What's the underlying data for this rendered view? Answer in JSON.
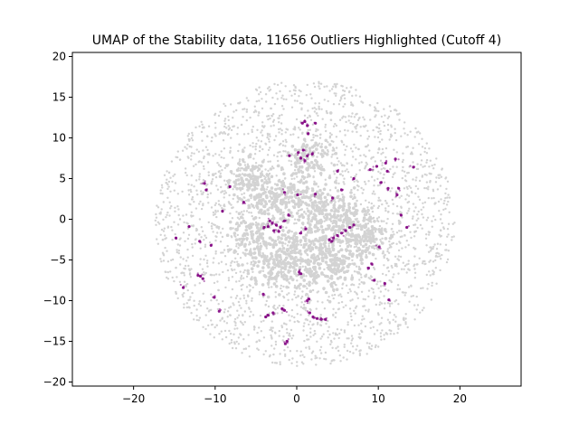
{
  "chart_data": {
    "type": "scatter",
    "title": "UMAP of the Stability data, 11656 Outliers Highlighted (Cutoff 4)",
    "xlabel": "",
    "ylabel": "",
    "xlim": [
      -27.5,
      27.5
    ],
    "ylim": [
      -20.5,
      20.5
    ],
    "x_ticks": [
      -20,
      -10,
      0,
      10,
      20
    ],
    "y_ticks": [
      -20,
      -15,
      -10,
      -5,
      0,
      5,
      10,
      15,
      20
    ],
    "x_tick_labels": [
      "−20",
      "−10",
      "0",
      "10",
      "20"
    ],
    "y_tick_labels": [
      "−20",
      "−15",
      "−10",
      "−5",
      "0",
      "5",
      "10",
      "15",
      "20"
    ],
    "grid": false,
    "legend": "none",
    "colors": {
      "inliers": "#d3d3d3",
      "outliers": "#800080"
    },
    "series": [
      {
        "role": "inliers",
        "color": "#d3d3d3",
        "distribution": "cloud",
        "center": [
          1.0,
          -0.5
        ],
        "radius": 18.0,
        "dense_blobs": [
          [
            -3.5,
            2.0
          ],
          [
            -0.5,
            2.5
          ],
          [
            3.0,
            1.5
          ],
          [
            6.5,
            0.5
          ],
          [
            -5.5,
            -2.5
          ],
          [
            -1.0,
            -3.5
          ],
          [
            3.0,
            -3.0
          ],
          [
            8.0,
            -2.0
          ],
          [
            -3.0,
            -6.0
          ],
          [
            2.0,
            -6.5
          ],
          [
            5.5,
            -5.5
          ],
          [
            -6.0,
            5.0
          ],
          [
            1.5,
            7.5
          ]
        ]
      },
      {
        "role": "outliers",
        "color": "#800080",
        "points": [
          [
            1.0,
            12.0
          ],
          [
            1.3,
            11.5
          ],
          [
            0.7,
            11.8
          ],
          [
            2.3,
            11.8
          ],
          [
            1.4,
            10.5
          ],
          [
            0.2,
            8.2
          ],
          [
            0.5,
            7.5
          ],
          [
            1.0,
            7.2
          ],
          [
            1.3,
            7.8
          ],
          [
            0.8,
            8.5
          ],
          [
            -0.9,
            7.8
          ],
          [
            1.9,
            8.0
          ],
          [
            5.0,
            5.9
          ],
          [
            7.0,
            5.0
          ],
          [
            9.0,
            6.1
          ],
          [
            9.8,
            6.5
          ],
          [
            10.3,
            4.5
          ],
          [
            10.9,
            6.9
          ],
          [
            11.1,
            5.9
          ],
          [
            12.1,
            7.4
          ],
          [
            14.3,
            6.4
          ],
          [
            11.2,
            3.8
          ],
          [
            12.5,
            3.8
          ],
          [
            12.3,
            3.0
          ],
          [
            12.8,
            0.5
          ],
          [
            13.5,
            -1.0
          ],
          [
            -11.3,
            4.4
          ],
          [
            -11.1,
            3.6
          ],
          [
            -8.2,
            4.0
          ],
          [
            -9.1,
            1.0
          ],
          [
            -6.5,
            2.1
          ],
          [
            -1.5,
            3.3
          ],
          [
            0.1,
            3.0
          ],
          [
            2.3,
            3.1
          ],
          [
            4.4,
            2.6
          ],
          [
            5.5,
            3.6
          ],
          [
            -3.0,
            -0.5
          ],
          [
            -2.5,
            -0.7
          ],
          [
            -2.0,
            -1.0
          ],
          [
            -3.5,
            -0.9
          ],
          [
            -2.8,
            -1.4
          ],
          [
            -2.2,
            -1.5
          ],
          [
            -4.0,
            -1.0
          ],
          [
            -3.3,
            -0.2
          ],
          [
            -1.0,
            0.5
          ],
          [
            -1.5,
            -0.2
          ],
          [
            4.0,
            -2.5
          ],
          [
            4.5,
            -2.3
          ],
          [
            5.0,
            -2.0
          ],
          [
            5.5,
            -1.7
          ],
          [
            6.0,
            -1.4
          ],
          [
            6.5,
            -1.0
          ],
          [
            7.0,
            -0.7
          ],
          [
            4.3,
            -2.7
          ],
          [
            -13.2,
            -0.9
          ],
          [
            -14.8,
            -2.3
          ],
          [
            -11.9,
            -2.7
          ],
          [
            -10.5,
            -3.2
          ],
          [
            0.5,
            -1.7
          ],
          [
            1.1,
            -1.2
          ],
          [
            -12.1,
            -6.9
          ],
          [
            -11.5,
            -7.3
          ],
          [
            -11.8,
            -7.0
          ],
          [
            -13.9,
            -8.4
          ],
          [
            -10.1,
            -9.6
          ],
          [
            -9.5,
            -11.3
          ],
          [
            -4.1,
            -9.2
          ],
          [
            -3.8,
            -12.0
          ],
          [
            -3.5,
            -11.8
          ],
          [
            -1.8,
            -11.0
          ],
          [
            -1.5,
            -11.2
          ],
          [
            -2.9,
            -11.5
          ],
          [
            -1.2,
            -15.0
          ],
          [
            -1.4,
            -15.3
          ],
          [
            0.3,
            -6.5
          ],
          [
            0.5,
            -6.7
          ],
          [
            1.3,
            -10.0
          ],
          [
            1.5,
            -9.8
          ],
          [
            1.6,
            -11.5
          ],
          [
            2.5,
            -12.2
          ],
          [
            3.0,
            -12.3
          ],
          [
            3.5,
            -12.3
          ],
          [
            2.0,
            -12.0
          ],
          [
            8.8,
            -6.0
          ],
          [
            9.5,
            -7.5
          ],
          [
            9.2,
            -5.5
          ],
          [
            10.1,
            -3.4
          ],
          [
            10.8,
            -7.9
          ],
          [
            11.3,
            -9.9
          ]
        ]
      }
    ]
  }
}
